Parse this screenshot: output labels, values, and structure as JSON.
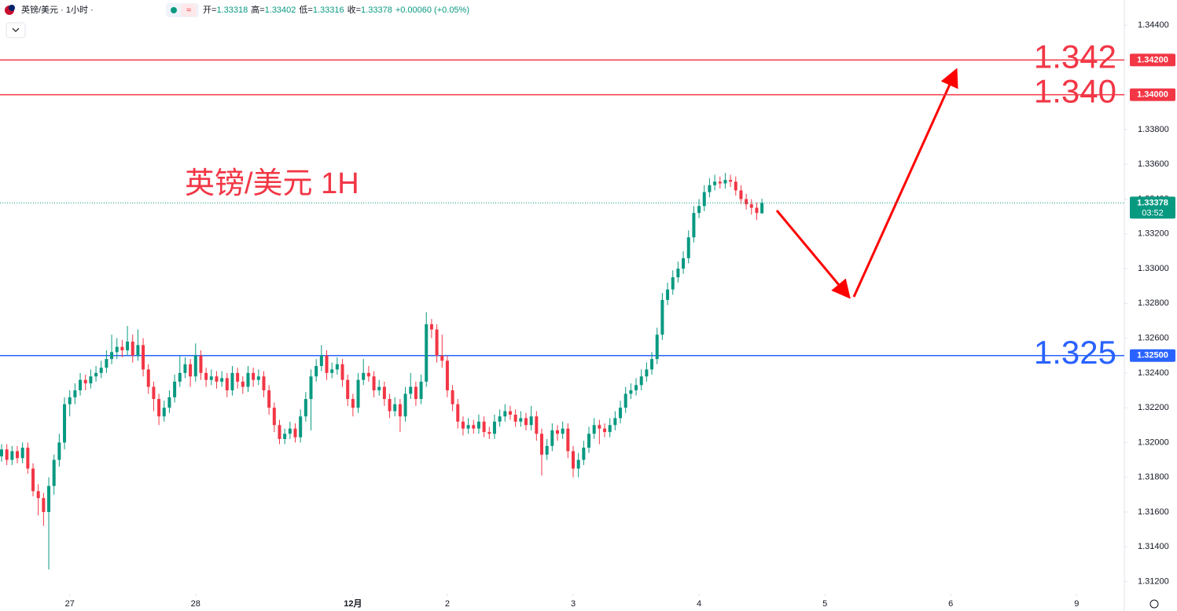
{
  "chart_data": {
    "type": "candlestick",
    "title": "英镑/美元 1H",
    "header": {
      "symbol": "英镑/美元 · 1小时 ·",
      "ohlc": [
        {
          "label": "开=",
          "value": "1.33318"
        },
        {
          "label": "高=",
          "value": "1.33402"
        },
        {
          "label": "低=",
          "value": "1.33316"
        },
        {
          "label": "收=",
          "value": "1.33378"
        }
      ],
      "change": "+0.00060 (+0.05%)"
    },
    "up_color": "#089981",
    "down_color": "#f23645",
    "xlim": [
      -0.3,
      214.1
    ],
    "xticks": [
      {
        "value": 13,
        "label": "27"
      },
      {
        "value": 37,
        "label": "28"
      },
      {
        "value": 67,
        "label": "12月"
      },
      {
        "value": 85,
        "label": "2"
      },
      {
        "value": 109,
        "label": "3"
      },
      {
        "value": 133,
        "label": "4"
      },
      {
        "value": 157,
        "label": "5"
      },
      {
        "value": 181,
        "label": "6"
      },
      {
        "value": 205,
        "label": "9"
      }
    ],
    "ylim": [
      1.3113,
      1.34545
    ],
    "yticks": [
      {
        "value": 1.344,
        "label": "1.34400"
      },
      {
        "value": 1.342,
        "label": "1.34200"
      },
      {
        "value": 1.34,
        "label": "1.34000"
      },
      {
        "value": 1.338,
        "label": "1.33800"
      },
      {
        "value": 1.336,
        "label": "1.33600"
      },
      {
        "value": 1.334,
        "label": "1.33400"
      },
      {
        "value": 1.332,
        "label": "1.33200"
      },
      {
        "value": 1.33,
        "label": "1.33000"
      },
      {
        "value": 1.328,
        "label": "1.32800"
      },
      {
        "value": 1.326,
        "label": "1.32600"
      },
      {
        "value": 1.324,
        "label": "1.32400"
      },
      {
        "value": 1.322,
        "label": "1.32200"
      },
      {
        "value": 1.32,
        "label": "1.32000"
      },
      {
        "value": 1.318,
        "label": "1.31800"
      },
      {
        "value": 1.316,
        "label": "1.31600"
      },
      {
        "value": 1.314,
        "label": "1.31400"
      },
      {
        "value": 1.312,
        "label": "1.31200"
      }
    ],
    "levels": [
      {
        "value": 1.342,
        "label": "1.342",
        "axis_label": "1.34200",
        "color": "#f23645"
      },
      {
        "value": 1.34,
        "label": "1.340",
        "axis_label": "1.34000",
        "color": "#f23645"
      },
      {
        "value": 1.325,
        "label": "1.325",
        "axis_label": "1.32500",
        "color": "#2962ff"
      }
    ],
    "last_price": {
      "value": 1.33378,
      "countdown": "03:52"
    },
    "candles": [
      [
        1.3192,
        1.3199,
        1.3189,
        1.3196
      ],
      [
        1.3196,
        1.3199,
        1.3187,
        1.319
      ],
      [
        1.319,
        1.3198,
        1.3187,
        1.3195
      ],
      [
        1.3195,
        1.3198,
        1.3188,
        1.3191
      ],
      [
        1.3191,
        1.32,
        1.3188,
        1.3197
      ],
      [
        1.3197,
        1.32,
        1.3182,
        1.3185
      ],
      [
        1.3185,
        1.3188,
        1.3169,
        1.3172
      ],
      [
        1.3172,
        1.3176,
        1.3158,
        1.3168
      ],
      [
        1.3168,
        1.3171,
        1.3152,
        1.316
      ],
      [
        1.316,
        1.318,
        1.3127,
        1.3175
      ],
      [
        1.3175,
        1.3193,
        1.317,
        1.319
      ],
      [
        1.319,
        1.3205,
        1.3186,
        1.32
      ],
      [
        1.32,
        1.3226,
        1.3196,
        1.3222
      ],
      [
        1.3222,
        1.323,
        1.3215,
        1.3226
      ],
      [
        1.3226,
        1.3234,
        1.3222,
        1.323
      ],
      [
        1.323,
        1.324,
        1.3227,
        1.3236
      ],
      [
        1.3236,
        1.3239,
        1.323,
        1.3234
      ],
      [
        1.3234,
        1.3242,
        1.3231,
        1.3238
      ],
      [
        1.3238,
        1.3244,
        1.3235,
        1.324
      ],
      [
        1.324,
        1.3247,
        1.3237,
        1.3243
      ],
      [
        1.3243,
        1.3253,
        1.324,
        1.3248
      ],
      [
        1.3248,
        1.3262,
        1.3245,
        1.3252
      ],
      [
        1.3252,
        1.326,
        1.3248,
        1.3255
      ],
      [
        1.3255,
        1.3259,
        1.3249,
        1.3253
      ],
      [
        1.3253,
        1.3267,
        1.325,
        1.3258
      ],
      [
        1.3258,
        1.3262,
        1.3246,
        1.325
      ],
      [
        1.325,
        1.3265,
        1.3247,
        1.3256
      ],
      [
        1.3256,
        1.326,
        1.3238,
        1.3242
      ],
      [
        1.3242,
        1.3245,
        1.3228,
        1.3232
      ],
      [
        1.3232,
        1.3235,
        1.3218,
        1.3225
      ],
      [
        1.3225,
        1.3228,
        1.321,
        1.3215
      ],
      [
        1.3215,
        1.3224,
        1.3212,
        1.322
      ],
      [
        1.322,
        1.323,
        1.3217,
        1.3226
      ],
      [
        1.3226,
        1.3239,
        1.3223,
        1.3235
      ],
      [
        1.3235,
        1.325,
        1.3232,
        1.324
      ],
      [
        1.324,
        1.3249,
        1.3237,
        1.3245
      ],
      [
        1.3245,
        1.3248,
        1.3232,
        1.3238
      ],
      [
        1.3238,
        1.3257,
        1.3235,
        1.325
      ],
      [
        1.325,
        1.3253,
        1.3236,
        1.324
      ],
      [
        1.324,
        1.3243,
        1.3232,
        1.3236
      ],
      [
        1.3236,
        1.3242,
        1.3233,
        1.3238
      ],
      [
        1.3238,
        1.3241,
        1.3231,
        1.3235
      ],
      [
        1.3235,
        1.3241,
        1.3232,
        1.3237
      ],
      [
        1.3237,
        1.324,
        1.3226,
        1.323
      ],
      [
        1.323,
        1.3244,
        1.3227,
        1.324
      ],
      [
        1.324,
        1.3243,
        1.3231,
        1.3235
      ],
      [
        1.3235,
        1.3238,
        1.3228,
        1.3232
      ],
      [
        1.3232,
        1.3244,
        1.3229,
        1.324
      ],
      [
        1.324,
        1.3243,
        1.3232,
        1.3236
      ],
      [
        1.3236,
        1.3242,
        1.3233,
        1.3238
      ],
      [
        1.3238,
        1.3241,
        1.3226,
        1.323
      ],
      [
        1.323,
        1.3233,
        1.3216,
        1.322
      ],
      [
        1.322,
        1.3223,
        1.3206,
        1.321
      ],
      [
        1.321,
        1.3213,
        1.3199,
        1.3202
      ],
      [
        1.3202,
        1.3208,
        1.3199,
        1.3205
      ],
      [
        1.3205,
        1.3212,
        1.3202,
        1.3208
      ],
      [
        1.3208,
        1.3211,
        1.32,
        1.3203
      ],
      [
        1.3203,
        1.3219,
        1.32,
        1.3215
      ],
      [
        1.3215,
        1.3229,
        1.3212,
        1.3225
      ],
      [
        1.3225,
        1.3242,
        1.3207,
        1.3238
      ],
      [
        1.3238,
        1.3248,
        1.3235,
        1.3244
      ],
      [
        1.3244,
        1.3256,
        1.3241,
        1.325
      ],
      [
        1.325,
        1.3253,
        1.3236,
        1.324
      ],
      [
        1.324,
        1.3246,
        1.3237,
        1.3242
      ],
      [
        1.3242,
        1.3249,
        1.3239,
        1.3245
      ],
      [
        1.3245,
        1.3248,
        1.3232,
        1.3236
      ],
      [
        1.3236,
        1.3239,
        1.3221,
        1.3225
      ],
      [
        1.3225,
        1.3228,
        1.3215,
        1.322
      ],
      [
        1.322,
        1.324,
        1.3217,
        1.3236
      ],
      [
        1.3236,
        1.3248,
        1.3233,
        1.324
      ],
      [
        1.324,
        1.3244,
        1.3235,
        1.3238
      ],
      [
        1.3238,
        1.3241,
        1.3226,
        1.323
      ],
      [
        1.323,
        1.3236,
        1.3227,
        1.3232
      ],
      [
        1.3232,
        1.3235,
        1.3221,
        1.3225
      ],
      [
        1.3225,
        1.3228,
        1.3214,
        1.3218
      ],
      [
        1.3218,
        1.3226,
        1.3215,
        1.3222
      ],
      [
        1.3222,
        1.3225,
        1.3206,
        1.3215
      ],
      [
        1.3215,
        1.3232,
        1.3212,
        1.3228
      ],
      [
        1.3228,
        1.324,
        1.3225,
        1.3232
      ],
      [
        1.3232,
        1.3235,
        1.3221,
        1.3225
      ],
      [
        1.3225,
        1.3239,
        1.3222,
        1.3235
      ],
      [
        1.3235,
        1.3275,
        1.3232,
        1.3268
      ],
      [
        1.3268,
        1.3271,
        1.326,
        1.3265
      ],
      [
        1.3265,
        1.3268,
        1.3246,
        1.325
      ],
      [
        1.325,
        1.3262,
        1.3243,
        1.3247
      ],
      [
        1.3247,
        1.325,
        1.3226,
        1.323
      ],
      [
        1.323,
        1.3233,
        1.3218,
        1.3222
      ],
      [
        1.3222,
        1.3225,
        1.3208,
        1.3212
      ],
      [
        1.3212,
        1.3215,
        1.3204,
        1.3208
      ],
      [
        1.3208,
        1.3214,
        1.3205,
        1.321
      ],
      [
        1.321,
        1.3213,
        1.3205,
        1.3208
      ],
      [
        1.3208,
        1.3216,
        1.3205,
        1.3212
      ],
      [
        1.3212,
        1.3215,
        1.3203,
        1.3206
      ],
      [
        1.3206,
        1.3209,
        1.3202,
        1.3205
      ],
      [
        1.3205,
        1.3216,
        1.3202,
        1.3212
      ],
      [
        1.3212,
        1.3219,
        1.3209,
        1.3215
      ],
      [
        1.3215,
        1.3222,
        1.3212,
        1.3218
      ],
      [
        1.3218,
        1.3221,
        1.3213,
        1.3216
      ],
      [
        1.3216,
        1.3219,
        1.3209,
        1.3212
      ],
      [
        1.3212,
        1.3218,
        1.3209,
        1.3214
      ],
      [
        1.3214,
        1.3217,
        1.3207,
        1.321
      ],
      [
        1.321,
        1.3221,
        1.3207,
        1.3215
      ],
      [
        1.3215,
        1.3218,
        1.3201,
        1.3205
      ],
      [
        1.3205,
        1.3208,
        1.3181,
        1.3193
      ],
      [
        1.3193,
        1.3202,
        1.319,
        1.3198
      ],
      [
        1.3198,
        1.3211,
        1.3195,
        1.3207
      ],
      [
        1.3207,
        1.321,
        1.3201,
        1.3205
      ],
      [
        1.3205,
        1.3212,
        1.3202,
        1.3208
      ],
      [
        1.3208,
        1.3211,
        1.3191,
        1.3195
      ],
      [
        1.3195,
        1.3198,
        1.318,
        1.3185
      ],
      [
        1.3185,
        1.3194,
        1.318,
        1.319
      ],
      [
        1.319,
        1.3201,
        1.3187,
        1.3197
      ],
      [
        1.3197,
        1.3209,
        1.3194,
        1.3205
      ],
      [
        1.3205,
        1.3214,
        1.3202,
        1.321
      ],
      [
        1.321,
        1.3213,
        1.3199,
        1.3208
      ],
      [
        1.3208,
        1.3211,
        1.3203,
        1.3206
      ],
      [
        1.3206,
        1.3214,
        1.3203,
        1.321
      ],
      [
        1.321,
        1.3218,
        1.3207,
        1.3214
      ],
      [
        1.3214,
        1.3224,
        1.3211,
        1.322
      ],
      [
        1.322,
        1.3232,
        1.3217,
        1.3228
      ],
      [
        1.3228,
        1.3234,
        1.3225,
        1.323
      ],
      [
        1.323,
        1.3237,
        1.3227,
        1.3233
      ],
      [
        1.3233,
        1.3242,
        1.323,
        1.3238
      ],
      [
        1.3238,
        1.3246,
        1.3235,
        1.3242
      ],
      [
        1.3242,
        1.3252,
        1.3239,
        1.3248
      ],
      [
        1.3248,
        1.3266,
        1.3245,
        1.3262
      ],
      [
        1.3262,
        1.3286,
        1.3259,
        1.3282
      ],
      [
        1.3282,
        1.3292,
        1.3279,
        1.3288
      ],
      [
        1.3288,
        1.3299,
        1.3285,
        1.3295
      ],
      [
        1.3295,
        1.3304,
        1.3292,
        1.33
      ],
      [
        1.33,
        1.331,
        1.3297,
        1.3306
      ],
      [
        1.3306,
        1.3322,
        1.3303,
        1.3318
      ],
      [
        1.3318,
        1.3336,
        1.3315,
        1.3332
      ],
      [
        1.3332,
        1.334,
        1.3329,
        1.3336
      ],
      [
        1.3336,
        1.3348,
        1.3333,
        1.3344
      ],
      [
        1.3344,
        1.3352,
        1.3341,
        1.3348
      ],
      [
        1.3348,
        1.3354,
        1.3345,
        1.335
      ],
      [
        1.335,
        1.3353,
        1.3346,
        1.3349
      ],
      [
        1.3349,
        1.3355,
        1.3346,
        1.3351
      ],
      [
        1.3351,
        1.3354,
        1.3347,
        1.335
      ],
      [
        1.335,
        1.3353,
        1.3342,
        1.3345
      ],
      [
        1.3345,
        1.3348,
        1.3337,
        1.334
      ],
      [
        1.334,
        1.3343,
        1.3334,
        1.3337
      ],
      [
        1.3337,
        1.334,
        1.3331,
        1.3335
      ],
      [
        1.3335,
        1.3338,
        1.3328,
        1.3332
      ],
      [
        1.33318,
        1.33402,
        1.33316,
        1.33378
      ]
    ]
  }
}
